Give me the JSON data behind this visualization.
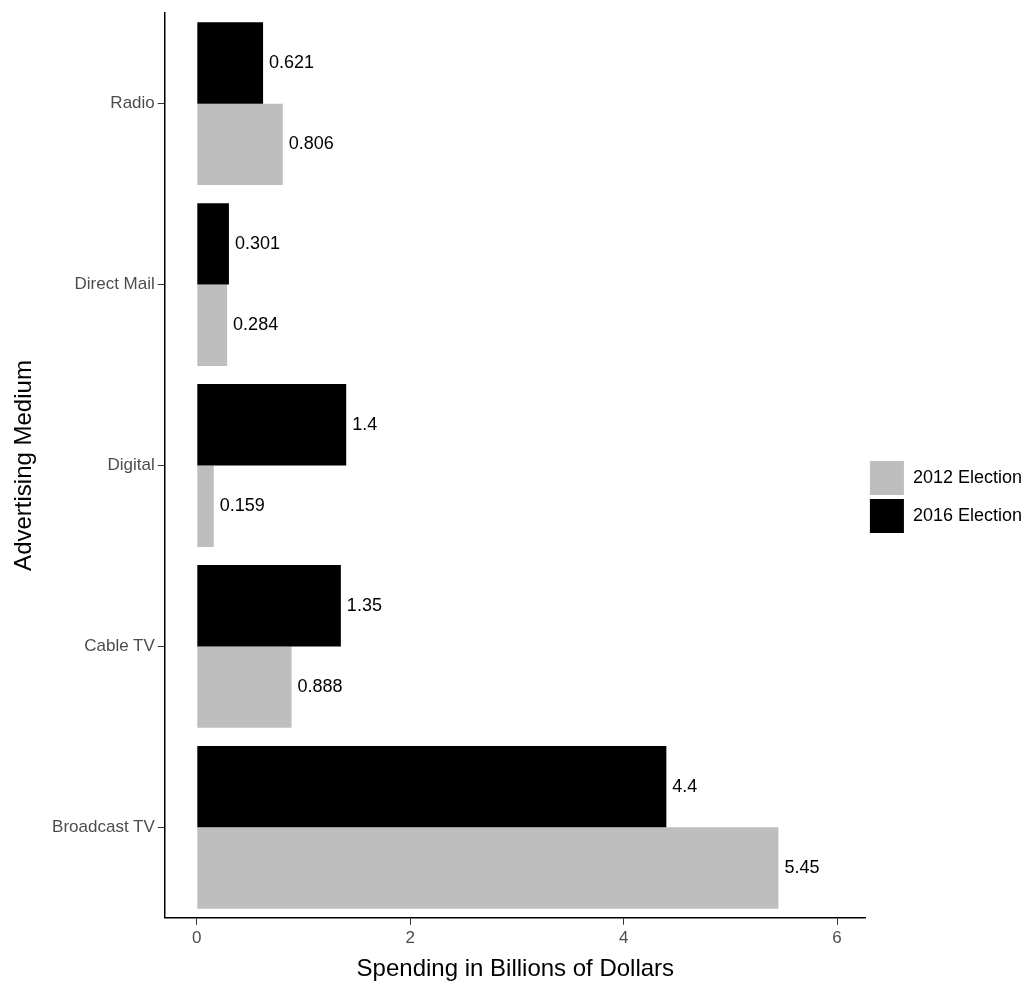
{
  "chart_data": {
    "type": "bar",
    "orientation": "horizontal",
    "xlabel": "Spending in Billions of Dollars",
    "ylabel": "Advertising Medium",
    "categories": [
      "Radio",
      "Direct Mail",
      "Digital",
      "Cable TV",
      "Broadcast TV"
    ],
    "series": [
      {
        "name": "2012 Election",
        "color": "#bebebe",
        "values": [
          0.806,
          0.284,
          0.159,
          0.888,
          5.45
        ]
      },
      {
        "name": "2016 Election",
        "color": "#000000",
        "values": [
          0.621,
          0.301,
          1.4,
          1.35,
          4.4
        ]
      }
    ],
    "xlim": [
      -0.3,
      6.27
    ],
    "xticks": [
      0,
      2,
      4,
      6
    ],
    "data_labels": true,
    "legend": "right"
  }
}
